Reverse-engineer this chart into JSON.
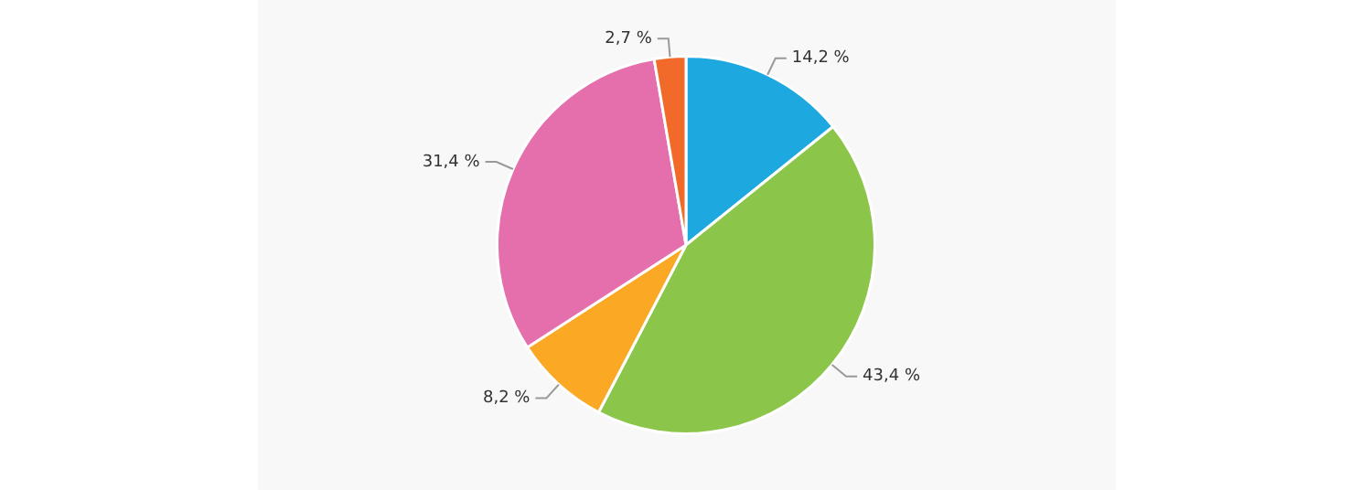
{
  "chart_data": {
    "type": "pie",
    "categories": [
      null,
      null,
      null,
      null,
      null
    ],
    "values": [
      14.2,
      43.4,
      8.2,
      31.4,
      2.7
    ],
    "value_labels": [
      "14,2 %",
      "43,4 %",
      "8,2 %",
      "31,4 %",
      "2,7 %"
    ],
    "colors": [
      "#1ea8e0",
      "#8bc64a",
      "#fba825",
      "#e56fad",
      "#f26a2a"
    ],
    "legend": false
  }
}
